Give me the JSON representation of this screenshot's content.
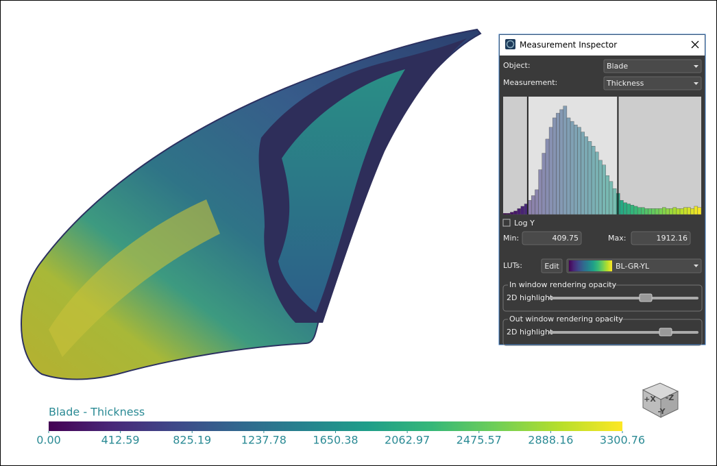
{
  "window": {
    "title": "Measurement Inspector"
  },
  "inspector": {
    "object_label": "Object:",
    "object_value": "Blade",
    "measurement_label": "Measurement:",
    "measurement_value": "Thickness",
    "histogram": {
      "type": "histogram",
      "values": [
        1,
        1,
        2,
        3,
        5,
        7,
        9,
        12,
        16,
        21,
        38,
        52,
        64,
        74,
        82,
        86,
        89,
        92,
        82,
        79,
        76,
        74,
        70,
        66,
        62,
        58,
        53,
        46,
        42,
        33,
        28,
        22,
        18,
        12,
        10,
        9,
        8,
        7,
        6,
        6,
        5,
        5,
        5,
        5,
        5,
        6,
        5,
        5,
        6,
        5,
        5,
        6,
        6,
        5,
        7,
        6
      ],
      "xlim": [
        0,
        3300.76
      ],
      "ylim": [
        0,
        100
      ]
    },
    "log_y_label": "Log Y",
    "min_label": "Min:",
    "min": 409.75,
    "max_label": "Max:",
    "max": 1912.16,
    "luts_label": "LUTs:",
    "edit": "Edit",
    "lut_name": "BL-GR-YL",
    "in_window": {
      "title": "In window rendering opacity",
      "slider_label": "2D highlight"
    },
    "out_window": {
      "title": "Out window rendering opacity",
      "slider_label": "2D highlight"
    }
  },
  "colorbar": {
    "title": "Blade - Thickness",
    "xlim": [
      0,
      3300.76
    ],
    "xticks": [
      {
        "value": 0,
        "label": "0.00"
      },
      412.59,
      825.19,
      1237.78,
      1650.38,
      2062.97,
      2475.57,
      2888.16,
      3300.76
    ],
    "colormap": [
      "#440154",
      "#482878",
      "#3e4989",
      "#31688e",
      "#26828e",
      "#1f9e89",
      "#35b779",
      "#6ece58",
      "#b5de2b",
      "#fde725"
    ]
  },
  "view_cube": {
    "labels": [
      "+X",
      "-Z",
      "-Y"
    ]
  }
}
